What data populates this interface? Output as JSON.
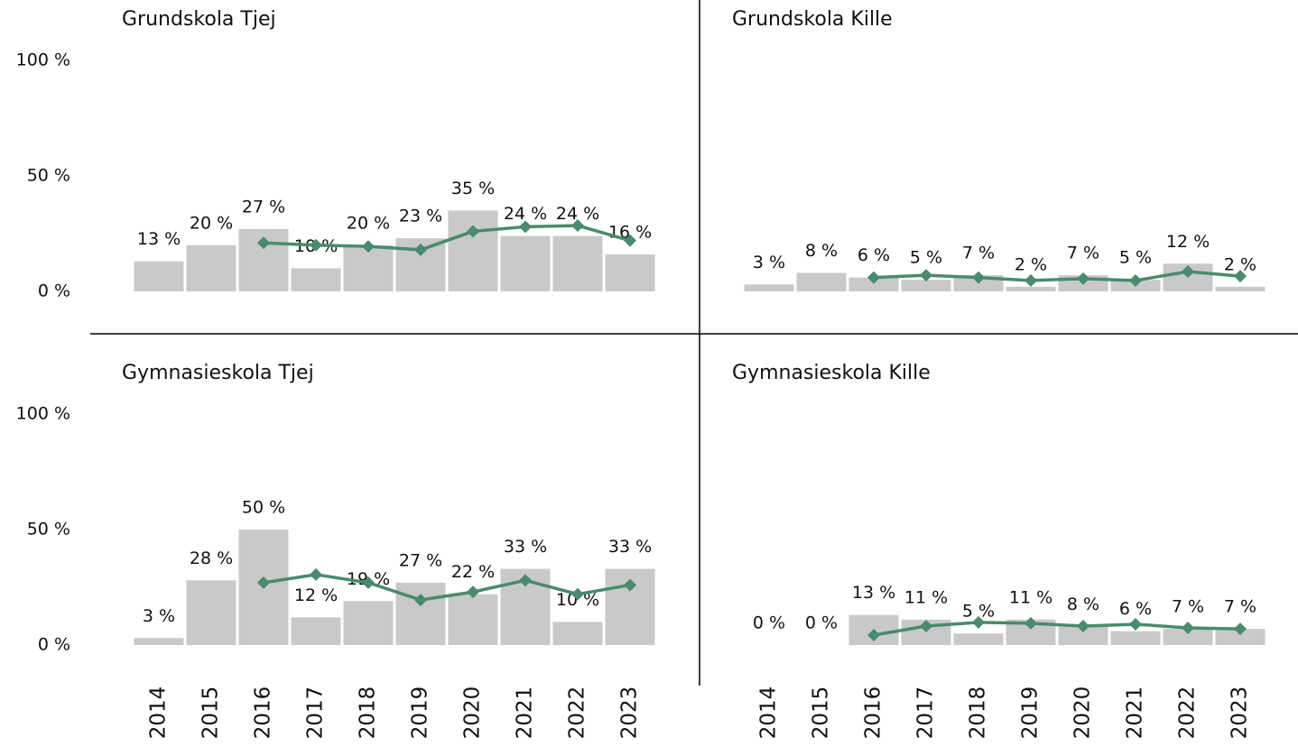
{
  "chart_data": [
    {
      "type": "bar",
      "title": "Grundskola Tjej",
      "ylim": [
        0,
        100
      ],
      "yticks": [
        {
          "value": 0,
          "label": "0 %"
        },
        {
          "value": 50,
          "label": "50 %"
        },
        {
          "value": 100,
          "label": "100 %"
        }
      ],
      "series": [
        {
          "type": "bar",
          "color": "#c9c9c9",
          "values": [
            13,
            20,
            27,
            10,
            20,
            23,
            35,
            24,
            24,
            16
          ],
          "value_labels": [
            "13 %",
            "20 %",
            "27 %",
            "10 %",
            "20 %",
            "23 %",
            "35 %",
            "24 %",
            "24 %",
            "16 %"
          ]
        },
        {
          "type": "line",
          "color": "#4a8a6e",
          "values": [
            null,
            null,
            21,
            20,
            19.5,
            18,
            26,
            28,
            28.5,
            22
          ]
        }
      ]
    },
    {
      "type": "bar",
      "title": "Grundskola Kille",
      "ylim": [
        0,
        100
      ],
      "series": [
        {
          "type": "bar",
          "color": "#c9c9c9",
          "values": [
            3,
            8,
            6,
            5,
            7,
            2,
            7,
            5,
            12,
            2
          ],
          "value_labels": [
            "3 %",
            "8 %",
            "6 %",
            "5 %",
            "7 %",
            "2 %",
            "7 %",
            "5 %",
            "12 %",
            "2 %"
          ]
        },
        {
          "type": "line",
          "color": "#4a8a6e",
          "values": [
            null,
            null,
            6,
            7,
            6,
            4.7,
            5.5,
            4.7,
            8.6,
            6.6
          ]
        }
      ]
    },
    {
      "type": "bar",
      "title": "Gymnasieskola Tjej",
      "ylim": [
        0,
        100
      ],
      "yticks": [
        {
          "value": 0,
          "label": "0 %"
        },
        {
          "value": 50,
          "label": "50 %"
        },
        {
          "value": 100,
          "label": "100 %"
        }
      ],
      "categories": [
        "2014",
        "2015",
        "2016",
        "2017",
        "2018",
        "2019",
        "2020",
        "2021",
        "2022",
        "2023"
      ],
      "series": [
        {
          "type": "bar",
          "color": "#c9c9c9",
          "values": [
            3,
            28,
            50,
            12,
            19,
            27,
            22,
            33,
            10,
            33
          ],
          "value_labels": [
            "3 %",
            "28 %",
            "50 %",
            "12 %",
            "19 %",
            "27 %",
            "22 %",
            "33 %",
            "10 %",
            "33 %"
          ]
        },
        {
          "type": "line",
          "color": "#4a8a6e",
          "values": [
            null,
            null,
            27,
            30.5,
            27,
            19.5,
            23,
            28,
            22,
            26
          ]
        }
      ]
    },
    {
      "type": "bar",
      "title": "Gymnasieskola Kille",
      "ylim": [
        0,
        100
      ],
      "categories": [
        "2014",
        "2015",
        "2016",
        "2017",
        "2018",
        "2019",
        "2020",
        "2021",
        "2022",
        "2023"
      ],
      "series": [
        {
          "type": "bar",
          "color": "#c9c9c9",
          "values": [
            0,
            0,
            13,
            11,
            5,
            11,
            8,
            6,
            7,
            7
          ],
          "value_labels": [
            "0 %",
            "0 %",
            "13 %",
            "11 %",
            "5 %",
            "11 %",
            "8 %",
            "6 %",
            "7 %",
            "7 %"
          ]
        },
        {
          "type": "line",
          "color": "#4a8a6e",
          "values": [
            null,
            null,
            4.3,
            8.2,
            9.8,
            9.4,
            8.2,
            9,
            7.4,
            7
          ]
        }
      ]
    }
  ]
}
